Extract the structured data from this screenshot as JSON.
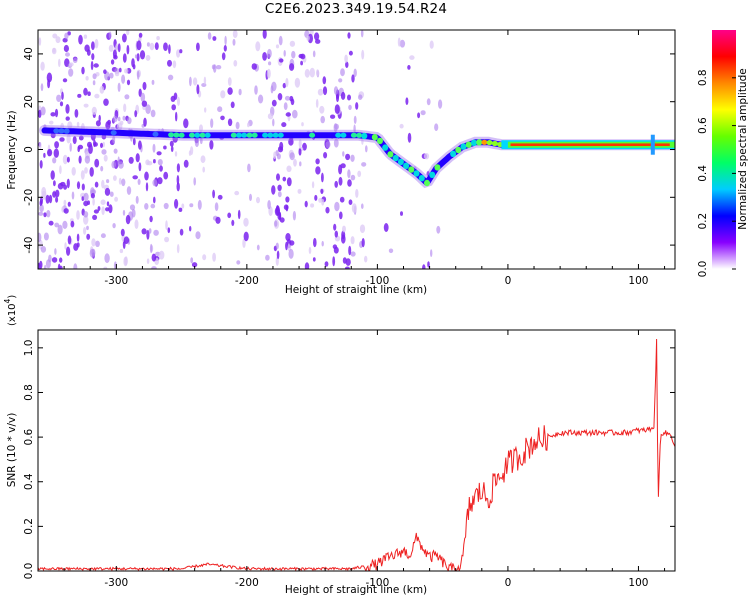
{
  "title": "C2E6.2023.349.19.54.R24",
  "colors": {
    "snr_line": "#ee2222",
    "colorbar": [
      "#ffffff",
      "#8800ff",
      "#0000ff",
      "#00ccff",
      "#00ff66",
      "#66ff00",
      "#ffff00",
      "#ff8800",
      "#ff0000",
      "#ff0088"
    ]
  },
  "chart_data": [
    {
      "type": "heatmap",
      "title": "",
      "xlabel": "Height of straight line (km)",
      "ylabel": "Frequency (Hz)",
      "xlim": [
        -360,
        128
      ],
      "ylim": [
        -50,
        50
      ],
      "xticks": [
        -300,
        -200,
        -100,
        0,
        100
      ],
      "xticklabels": [
        "-300",
        "-200",
        "-100",
        "0",
        "100"
      ],
      "yticks": [
        -40,
        -20,
        0,
        20,
        40
      ],
      "yticklabels": [
        "-40",
        "-20",
        "0",
        "20",
        "40"
      ],
      "colorbar": {
        "label": "Normalized spectral amplitude",
        "range": [
          0,
          1
        ],
        "ticks": [
          0,
          0.2,
          0.4,
          0.6,
          0.8
        ],
        "ticklabels": [
          "0.0",
          "0.2",
          "0.4",
          "0.6",
          "0.8"
        ]
      },
      "signal_trace": {
        "x": [
          -355,
          -300,
          -250,
          -200,
          -150,
          -115,
          -100,
          -90,
          -80,
          -70,
          -62,
          -55,
          -45,
          -35,
          -25,
          -15,
          -5,
          0,
          50,
          100,
          128
        ],
        "y": [
          8,
          7,
          6,
          6,
          6,
          6,
          5,
          -2,
          -6,
          -10,
          -14,
          -8,
          -3,
          1,
          3,
          3,
          2,
          2,
          2,
          2,
          2
        ]
      },
      "grid": false
    },
    {
      "type": "line",
      "title": "",
      "xlabel": "Height of straight line (km)",
      "ylabel": "SNR (10 * v/v)",
      "y_scale_label": "(x10",
      "y_scale_exp": "4",
      "y_scale_close": ")",
      "xlim": [
        -360,
        128
      ],
      "ylim": [
        0,
        1.08
      ],
      "xticks": [
        -300,
        -200,
        -100,
        0,
        100
      ],
      "xticklabels": [
        "-300",
        "-200",
        "-100",
        "0",
        "100"
      ],
      "yticks": [
        0,
        0.2,
        0.4,
        0.6,
        0.8,
        1.0
      ],
      "yticklabels": [
        "0.0",
        "0.2",
        "0.4",
        "0.6",
        "0.8",
        "1.0"
      ],
      "series": [
        {
          "x": [
            -360,
            -250,
            -230,
            -200,
            -120,
            -100,
            -95,
            -80,
            -75,
            -70,
            -65,
            -60,
            -55,
            -45,
            -40,
            -35,
            -30,
            -25,
            -20,
            -15,
            -10,
            -5,
            0,
            5,
            10,
            15,
            20,
            25,
            30,
            35,
            40,
            50,
            60,
            70,
            80,
            90,
            100,
            105,
            110,
            112,
            114,
            115,
            117,
            120,
            125,
            128
          ],
          "y": [
            0.01,
            0.01,
            0.03,
            0.01,
            0.01,
            0.03,
            0.05,
            0.09,
            0.07,
            0.15,
            0.1,
            0.06,
            0.07,
            0.01,
            0.01,
            0.02,
            0.28,
            0.33,
            0.36,
            0.32,
            0.4,
            0.43,
            0.48,
            0.5,
            0.52,
            0.55,
            0.58,
            0.59,
            0.6,
            0.61,
            0.62,
            0.62,
            0.62,
            0.62,
            0.62,
            0.62,
            0.63,
            0.63,
            0.64,
            0.65,
            1.05,
            0.28,
            0.62,
            0.62,
            0.61,
            0.56
          ]
        }
      ],
      "grid": false
    }
  ]
}
